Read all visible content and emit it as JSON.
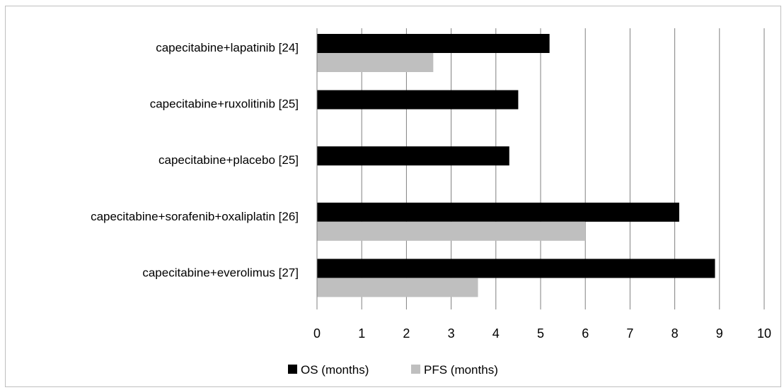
{
  "chart_data": {
    "type": "bar",
    "orientation": "horizontal",
    "categories": [
      "capecitabine+lapatinib [24]",
      "capecitabine+ruxolitinib [25]",
      "capecitabine+placebo [25]",
      "capecitabine+sorafenib+oxaliplatin [26]",
      "capecitabine+everolimus [27]"
    ],
    "series": [
      {
        "name": "OS (months)",
        "color": "#000000",
        "values": [
          5.2,
          4.5,
          4.3,
          8.1,
          8.9
        ]
      },
      {
        "name": "PFS (months)",
        "color": "#bfbfbf",
        "values": [
          2.6,
          null,
          null,
          6.0,
          3.6
        ]
      }
    ],
    "xlim": [
      0,
      10
    ],
    "xticks": [
      "0",
      "1",
      "2",
      "3",
      "4",
      "5",
      "6",
      "7",
      "8",
      "9",
      "10"
    ],
    "grid": true,
    "legend_position": "bottom",
    "title": "",
    "xlabel": "",
    "ylabel": ""
  }
}
